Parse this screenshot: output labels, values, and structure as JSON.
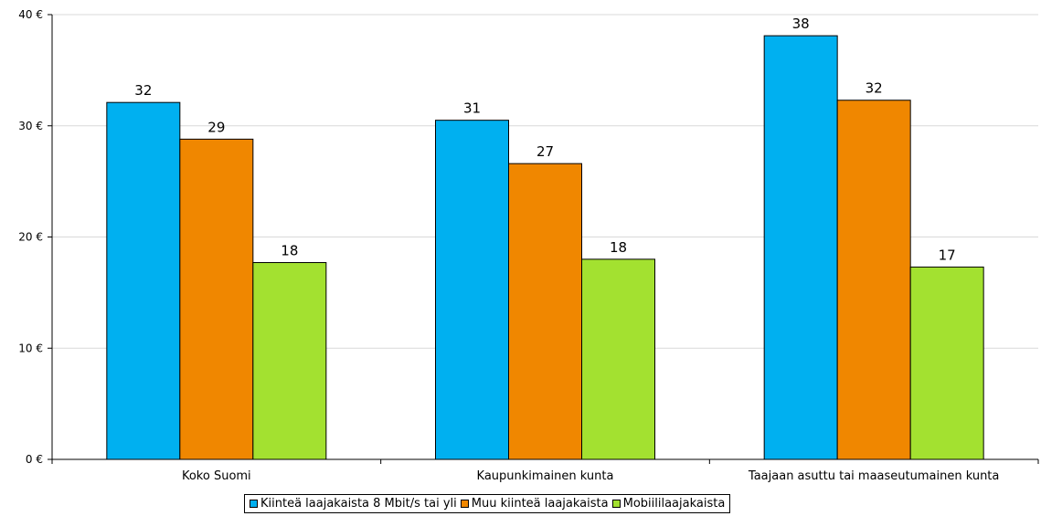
{
  "chart_data": {
    "type": "bar",
    "categories": [
      "Koko Suomi",
      "Kaupunkimainen kunta",
      "Taajaan asuttu tai maaseutumainen kunta"
    ],
    "series": [
      {
        "name": "Kiinteä laajakaista 8 Mbit/s tai yli",
        "color": "#00B0F0",
        "values": [
          32.1,
          30.5,
          38.1
        ],
        "labels": [
          "32",
          "31",
          "38"
        ]
      },
      {
        "name": "Muu kiinteä laajakaista",
        "color": "#F08700",
        "values": [
          28.8,
          26.6,
          32.3
        ],
        "labels": [
          "29",
          "27",
          "32"
        ]
      },
      {
        "name": "Mobiililaajakaista",
        "color": "#A3E130",
        "values": [
          17.7,
          18.0,
          17.3
        ],
        "labels": [
          "18",
          "18",
          "17"
        ]
      }
    ],
    "yticks": [
      "0 €",
      "10 €",
      "20 €",
      "30 €",
      "40 €"
    ],
    "ytick_values": [
      0,
      10,
      20,
      30,
      40
    ],
    "ylim": [
      0,
      40
    ],
    "grid": true,
    "legend_position": "bottom"
  }
}
